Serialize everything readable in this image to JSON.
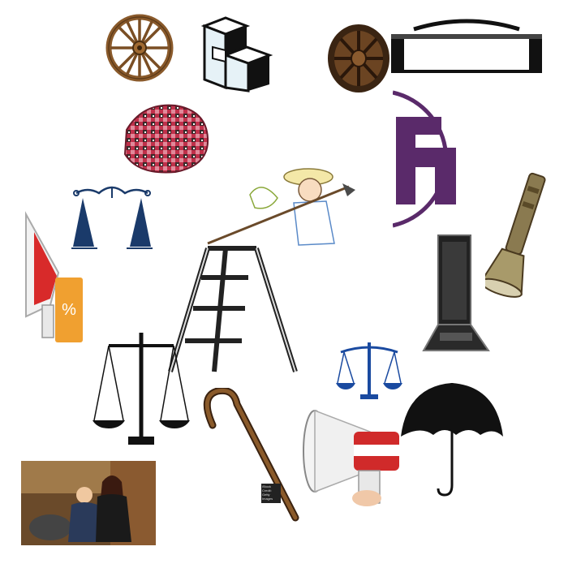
{
  "items": [
    {
      "id": "wheel1",
      "icon": "wooden-wheel-icon"
    },
    {
      "id": "stairs",
      "icon": "stairs-icon"
    },
    {
      "id": "wheel2",
      "icon": "wooden-wheel-icon"
    },
    {
      "id": "trunk",
      "icon": "trunk-lid-icon"
    },
    {
      "id": "fabric",
      "icon": "woven-fabric-icon"
    },
    {
      "id": "logo",
      "icon": "circle-letter-logo-icon"
    },
    {
      "id": "scale1",
      "icon": "balance-scale-icon"
    },
    {
      "id": "farmer",
      "icon": "farmer-with-hoe-icon"
    },
    {
      "id": "flashlight",
      "icon": "flashlight-icon"
    },
    {
      "id": "megaphone1",
      "icon": "megaphone-icon"
    },
    {
      "id": "laptop",
      "icon": "laptop-icon"
    },
    {
      "id": "ladder",
      "icon": "step-ladder-icon"
    },
    {
      "id": "scale2",
      "icon": "balance-scale-icon"
    },
    {
      "id": "scale3",
      "icon": "balance-scale-icon"
    },
    {
      "id": "cane",
      "icon": "walking-cane-icon"
    },
    {
      "id": "umbrella",
      "icon": "umbrella-icon"
    },
    {
      "id": "megaphone2",
      "icon": "megaphone-icon"
    },
    {
      "id": "photo",
      "icon": "family-photo-icon"
    }
  ],
  "megaphone_badge": "%",
  "cane_credit": "iStock\nCredit: Getty Images"
}
